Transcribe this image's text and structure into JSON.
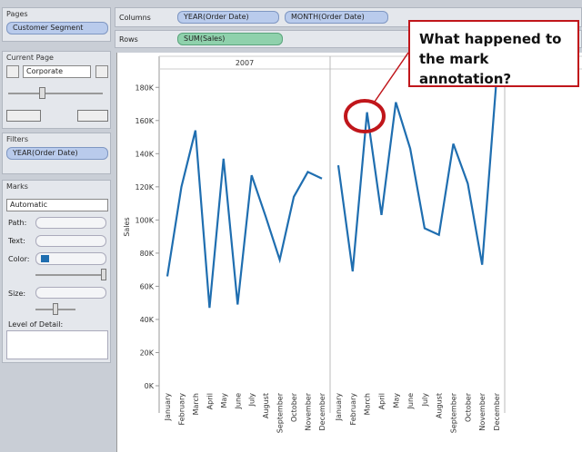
{
  "sidebar": {
    "pages": {
      "title": "Pages",
      "pill": "Customer Segment"
    },
    "current_page": {
      "title": "Current Page",
      "value": "Corporate"
    },
    "filters": {
      "title": "Filters",
      "pill": "YEAR(Order Date)"
    },
    "marks": {
      "title": "Marks",
      "type": "Automatic",
      "path": "Path:",
      "text": "Text:",
      "color": "Color:",
      "size": "Size:",
      "detail": "Level of Detail:"
    }
  },
  "shelves": {
    "columns": {
      "label": "Columns",
      "pills": [
        "YEAR(Order Date)",
        "MONTH(Order Date)"
      ]
    },
    "rows": {
      "label": "Rows",
      "pills": [
        "SUM(Sales)"
      ]
    }
  },
  "chart_data": {
    "type": "line",
    "y_label": "Sales",
    "color": "#1f6eb0",
    "categories": [
      "January",
      "February",
      "March",
      "April",
      "May",
      "June",
      "July",
      "August",
      "September",
      "October",
      "November",
      "December"
    ],
    "panes": [
      {
        "header": "2007",
        "values": [
          66000,
          120000,
          154000,
          47000,
          137000,
          49000,
          127000,
          102000,
          76000,
          114000,
          129000,
          125000
        ]
      },
      {
        "values": [
          133000,
          69000,
          165000,
          103000,
          171000,
          143000,
          95000,
          91000,
          146000,
          122000,
          73000,
          185000
        ]
      }
    ],
    "ylim": [
      0,
      190000
    ],
    "yticks": [
      {
        "value": 0,
        "label": "0K"
      },
      {
        "value": 20000,
        "label": "20K"
      },
      {
        "value": 40000,
        "label": "40K"
      },
      {
        "value": 60000,
        "label": "60K"
      },
      {
        "value": 80000,
        "label": "80K"
      },
      {
        "value": 100000,
        "label": "100K"
      },
      {
        "value": 120000,
        "label": "120K"
      },
      {
        "value": 140000,
        "label": "140K"
      },
      {
        "value": 160000,
        "label": "160K"
      },
      {
        "value": 180000,
        "label": "180K"
      }
    ]
  },
  "callout": {
    "text": "What happened to the mark annotation?"
  }
}
